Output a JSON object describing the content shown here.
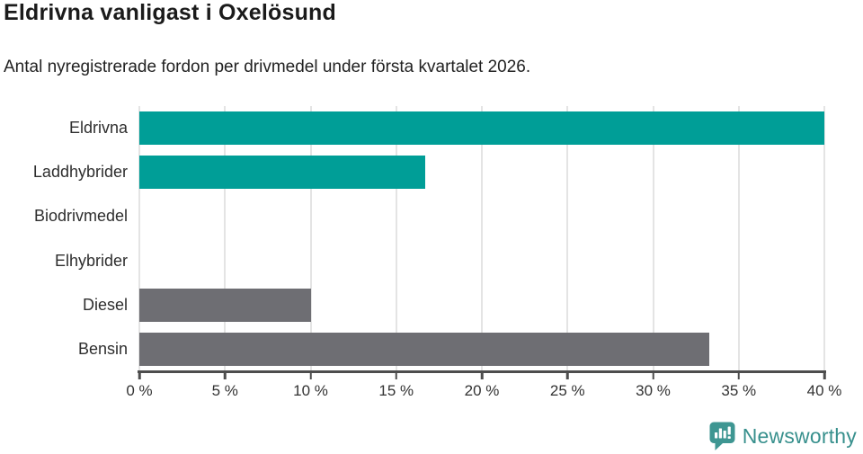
{
  "chart_data": {
    "type": "bar",
    "orientation": "horizontal",
    "title": "Eldrivna vanligast i Oxelösund",
    "subtitle": "Antal nyregistrerade fordon per drivmedel under första kvartalet 2026.",
    "categories": [
      "Eldrivna",
      "Laddhybrider",
      "Biodrivmedel",
      "Elhybrider",
      "Diesel",
      "Bensin"
    ],
    "values": [
      40,
      16.7,
      0,
      0,
      10,
      33.3
    ],
    "bar_colors": [
      "#009e97",
      "#009e97",
      "#009e97",
      "#009e97",
      "#6e6e73",
      "#6e6e73"
    ],
    "xlabel": "",
    "ylabel": "",
    "unit": "%",
    "xlim": [
      0,
      40
    ],
    "x_ticks": [
      0,
      5,
      10,
      15,
      20,
      25,
      30,
      35,
      40
    ],
    "x_tick_labels": [
      "0 %",
      "5 %",
      "10 %",
      "15 %",
      "20 %",
      "25 %",
      "30 %",
      "35 %",
      "40 %"
    ],
    "grid": "vertical",
    "legend": "none"
  },
  "colors": {
    "teal": "#009e97",
    "gray": "#6e6e73",
    "gridline": "#e4e4e4",
    "axis": "#4d4d4d",
    "logo_teal": "#3e9692",
    "logo_text_teal": "#38908d"
  },
  "branding": {
    "logo_text": "Newsworthy"
  }
}
